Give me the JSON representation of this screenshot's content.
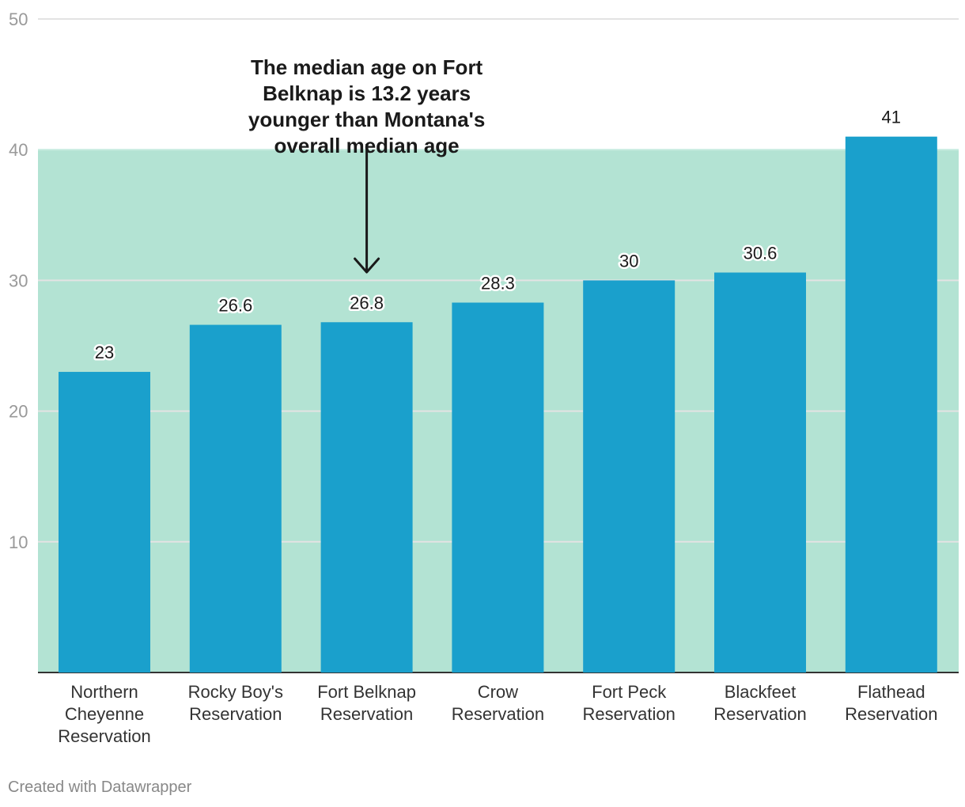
{
  "chart_data": {
    "type": "bar",
    "categories": [
      "Northern Cheyenne Reservation",
      "Rocky Boy's Reservation",
      "Fort Belknap Reservation",
      "Crow Reservation",
      "Fort Peck Reservation",
      "Blackfeet Reservation",
      "Flathead Reservation"
    ],
    "category_lines": [
      [
        "Northern",
        "Cheyenne",
        "Reservation"
      ],
      [
        "Rocky Boy's",
        "Reservation"
      ],
      [
        "Fort Belknap",
        "Reservation"
      ],
      [
        "Crow",
        "Reservation"
      ],
      [
        "Fort Peck",
        "Reservation"
      ],
      [
        "Blackfeet",
        "Reservation"
      ],
      [
        "Flathead",
        "Reservation"
      ]
    ],
    "values": [
      23,
      26.6,
      26.8,
      28.3,
      30,
      30.6,
      41
    ],
    "value_labels": [
      "23",
      "26.6",
      "26.8",
      "28.3",
      "30",
      "30.6",
      "41"
    ],
    "ylim": [
      0,
      50
    ],
    "yticks": [
      10,
      20,
      30,
      40,
      50
    ],
    "grid": true,
    "highlight_range": {
      "from": 0,
      "to": 40,
      "color": "#b3e3d3"
    },
    "bar_color": "#1aa0cc",
    "annotation": {
      "lines": [
        "The median age on Fort",
        "Belknap is 13.2 years",
        "younger than Montana's",
        "overall median age"
      ],
      "target_category_index": 2
    }
  },
  "footer": {
    "credit": "Created with Datawrapper"
  }
}
